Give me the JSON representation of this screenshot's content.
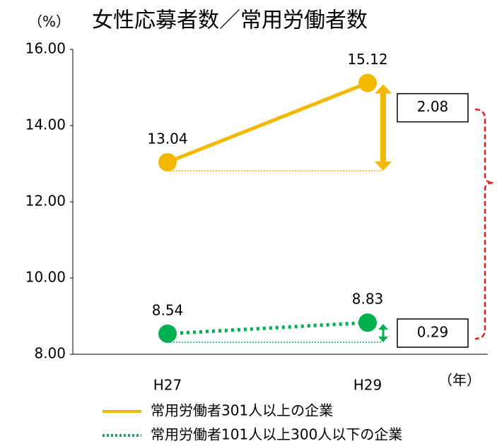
{
  "chart_data": {
    "type": "line",
    "title": "女性応募者数／常用労働者数",
    "y_axis_label": "（%）",
    "x_axis_label": "（年）",
    "categories": [
      "H27",
      "H29"
    ],
    "series": [
      {
        "name": "常用労働者301人以上の企業",
        "color": "#F5B800",
        "style": "solid",
        "values": [
          13.04,
          15.12
        ]
      },
      {
        "name": "常用労働者101人以上300人以下の企業",
        "color": "#00B050",
        "style": "dotted",
        "values": [
          8.54,
          8.83
        ]
      }
    ],
    "ylim": [
      8,
      16
    ],
    "yticks": [
      {
        "value": 8,
        "label": "8.00"
      },
      {
        "value": 10,
        "label": "10.00"
      },
      {
        "value": 12,
        "label": "12.00"
      },
      {
        "value": 14,
        "label": "14.00"
      },
      {
        "value": 16,
        "label": "16.00"
      }
    ],
    "annotations": [
      "2.08",
      "0.29"
    ]
  }
}
